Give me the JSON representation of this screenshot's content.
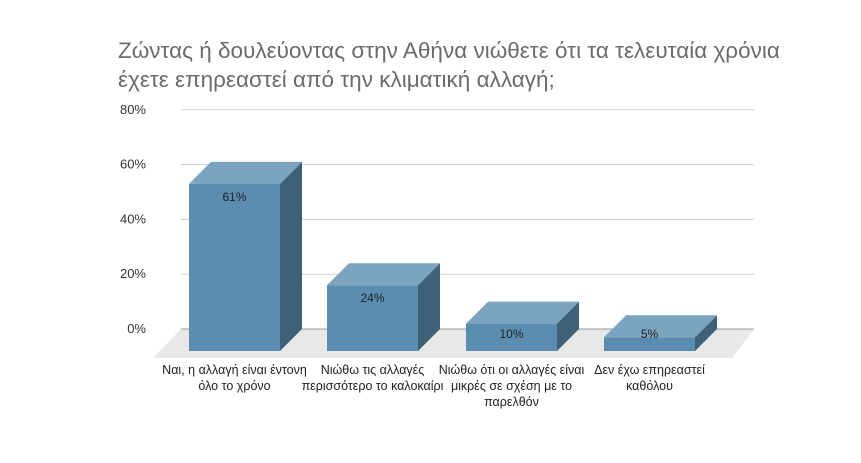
{
  "chart_data": {
    "type": "bar",
    "title": "Ζώντας ή δουλεύοντας στην Αθήνα νιώθετε ότι τα τελευταία χρόνια έχετε επηρεαστεί από την κλιματική αλλαγή;",
    "categories": [
      "Ναι, η αλλαγή είναι έντονη όλο το χρόνο",
      "Νιώθω τις αλλαγές περισσότερο το καλοκαίρι",
      "Νιώθω ότι οι αλλαγές είναι μικρές σε σχέση με το παρελθόν",
      "Δεν έχω επηρεαστεί καθόλου"
    ],
    "values": [
      61,
      24,
      10,
      5
    ],
    "data_labels": [
      "61%",
      "24%",
      "10%",
      "5%"
    ],
    "yticks": [
      "0%",
      "20%",
      "40%",
      "60%",
      "80%"
    ],
    "ylim": [
      0,
      80
    ],
    "grid": true,
    "style": "3d",
    "colors": {
      "front": "#5b8db0",
      "top": "#7aa4c0",
      "side": "#3e6178",
      "floor": "#e8e8e8",
      "grid": "#d0d0d0"
    }
  }
}
